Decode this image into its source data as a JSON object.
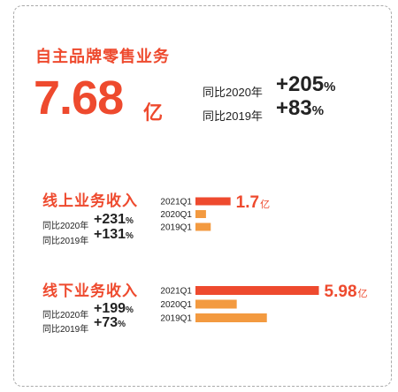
{
  "headline": {
    "title": "自主品牌零售业务",
    "value": "7.68",
    "unit": "亿",
    "comparisons": [
      {
        "label": "同比2020年",
        "value": "+205",
        "pct": "%"
      },
      {
        "label": "同比2019年",
        "value": "+83",
        "pct": "%"
      }
    ]
  },
  "sections": [
    {
      "title": "线上业务收入",
      "comparisons": [
        {
          "label": "同比2020年",
          "value": "+231",
          "pct": "%"
        },
        {
          "label": "同比2019年",
          "value": "+131",
          "pct": "%"
        }
      ]
    },
    {
      "title": "线下业务收入",
      "comparisons": [
        {
          "label": "同比2020年",
          "value": "+199",
          "pct": "%"
        },
        {
          "label": "同比2019年",
          "value": "+73",
          "pct": "%"
        }
      ]
    }
  ],
  "colors": {
    "accent": "#ee4a2e",
    "bar_2021": "#ee4a2e",
    "bar_prior": "#f39a40"
  },
  "chart_data": [
    {
      "type": "bar",
      "orientation": "horizontal",
      "title": "线上业务收入",
      "categories": [
        "2021Q1",
        "2020Q1",
        "2019Q1"
      ],
      "values": [
        1.7,
        0.51,
        0.74
      ],
      "data_labels": [
        {
          "number": "1.7",
          "unit": "亿"
        },
        null,
        null
      ],
      "xlim": [
        0,
        6.0
      ],
      "grid": false
    },
    {
      "type": "bar",
      "orientation": "horizontal",
      "title": "线下业务收入",
      "categories": [
        "2021Q1",
        "2020Q1",
        "2019Q1"
      ],
      "values": [
        5.98,
        2.0,
        3.46
      ],
      "data_labels": [
        {
          "number": "5.98",
          "unit": "亿"
        },
        null,
        null
      ],
      "xlim": [
        0,
        6.0
      ],
      "grid": false
    }
  ]
}
